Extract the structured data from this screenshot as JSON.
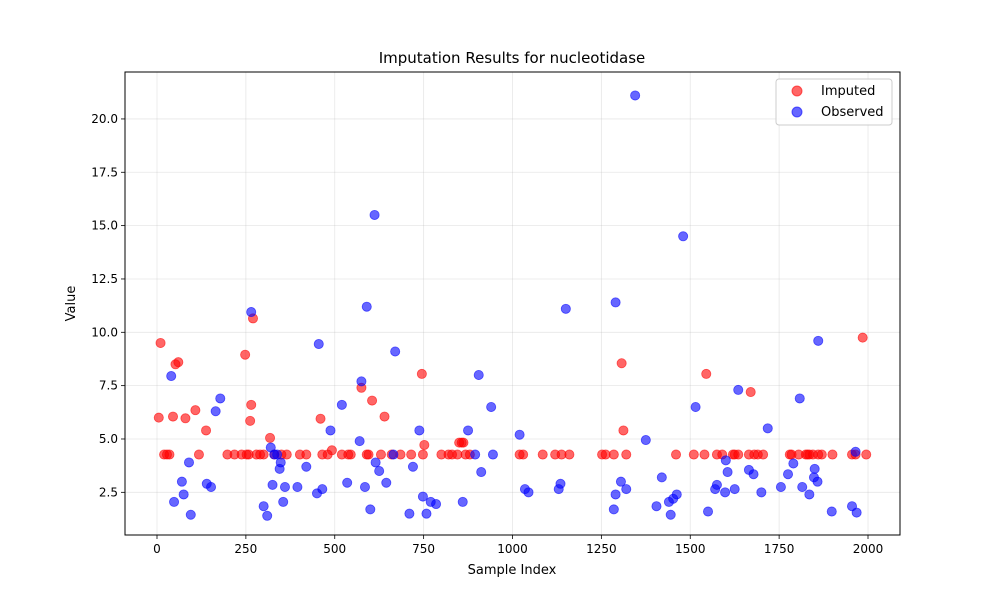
{
  "chart_data": {
    "type": "scatter",
    "title": "Imputation Results for nucleotidase",
    "xlabel": "Sample Index",
    "ylabel": "Value",
    "xlim": [
      -90,
      2090
    ],
    "ylim": [
      0.5,
      22.2
    ],
    "xticks": [
      0,
      250,
      500,
      750,
      1000,
      1250,
      1500,
      1750,
      2000
    ],
    "yticks": [
      2.5,
      5.0,
      7.5,
      10.0,
      12.5,
      15.0,
      17.5,
      20.0
    ],
    "grid": true,
    "legend_position": "top-right",
    "series": [
      {
        "name": "Imputed",
        "color": "#ff0000",
        "points": [
          [
            5,
            6.0
          ],
          [
            10,
            9.5
          ],
          [
            20,
            4.27
          ],
          [
            28,
            4.27
          ],
          [
            35,
            4.27
          ],
          [
            45,
            6.05
          ],
          [
            52,
            8.5
          ],
          [
            60,
            8.6
          ],
          [
            80,
            5.97
          ],
          [
            108,
            6.35
          ],
          [
            118,
            4.27
          ],
          [
            138,
            5.4
          ],
          [
            198,
            4.27
          ],
          [
            218,
            4.27
          ],
          [
            238,
            4.27
          ],
          [
            248,
            8.95
          ],
          [
            252,
            4.27
          ],
          [
            258,
            4.27
          ],
          [
            262,
            5.85
          ],
          [
            265,
            6.6
          ],
          [
            270,
            10.65
          ],
          [
            280,
            4.27
          ],
          [
            290,
            4.27
          ],
          [
            300,
            4.27
          ],
          [
            318,
            5.05
          ],
          [
            330,
            4.27
          ],
          [
            350,
            4.27
          ],
          [
            365,
            4.27
          ],
          [
            402,
            4.27
          ],
          [
            420,
            4.27
          ],
          [
            460,
            5.95
          ],
          [
            465,
            4.27
          ],
          [
            480,
            4.27
          ],
          [
            492,
            4.47
          ],
          [
            520,
            4.27
          ],
          [
            538,
            4.27
          ],
          [
            545,
            4.27
          ],
          [
            575,
            7.4
          ],
          [
            590,
            4.27
          ],
          [
            595,
            4.27
          ],
          [
            605,
            6.8
          ],
          [
            630,
            4.27
          ],
          [
            640,
            6.05
          ],
          [
            660,
            4.27
          ],
          [
            685,
            4.27
          ],
          [
            715,
            4.27
          ],
          [
            745,
            8.05
          ],
          [
            748,
            4.27
          ],
          [
            752,
            4.72
          ],
          [
            800,
            4.27
          ],
          [
            820,
            4.27
          ],
          [
            830,
            4.27
          ],
          [
            845,
            4.27
          ],
          [
            850,
            4.83
          ],
          [
            857,
            4.83
          ],
          [
            862,
            4.83
          ],
          [
            868,
            4.27
          ],
          [
            880,
            4.27
          ],
          [
            1020,
            4.27
          ],
          [
            1030,
            4.27
          ],
          [
            1085,
            4.27
          ],
          [
            1120,
            4.27
          ],
          [
            1138,
            4.27
          ],
          [
            1160,
            4.27
          ],
          [
            1252,
            4.27
          ],
          [
            1262,
            4.27
          ],
          [
            1285,
            4.27
          ],
          [
            1307,
            8.55
          ],
          [
            1312,
            5.4
          ],
          [
            1320,
            4.27
          ],
          [
            1460,
            4.27
          ],
          [
            1510,
            4.27
          ],
          [
            1540,
            4.27
          ],
          [
            1545,
            8.05
          ],
          [
            1575,
            4.27
          ],
          [
            1590,
            4.27
          ],
          [
            1620,
            4.27
          ],
          [
            1625,
            4.27
          ],
          [
            1635,
            4.27
          ],
          [
            1665,
            4.27
          ],
          [
            1670,
            7.2
          ],
          [
            1680,
            4.27
          ],
          [
            1690,
            4.27
          ],
          [
            1705,
            4.27
          ],
          [
            1780,
            4.27
          ],
          [
            1785,
            4.27
          ],
          [
            1805,
            4.27
          ],
          [
            1825,
            4.27
          ],
          [
            1830,
            4.27
          ],
          [
            1835,
            4.27
          ],
          [
            1845,
            4.27
          ],
          [
            1860,
            4.27
          ],
          [
            1870,
            4.27
          ],
          [
            1900,
            4.27
          ],
          [
            1955,
            4.27
          ],
          [
            1965,
            4.27
          ],
          [
            1985,
            9.75
          ],
          [
            1995,
            4.27
          ]
        ]
      },
      {
        "name": "Observed",
        "color": "#0000ff",
        "points": [
          [
            40,
            7.95
          ],
          [
            48,
            2.05
          ],
          [
            70,
            3.0
          ],
          [
            75,
            2.4
          ],
          [
            90,
            3.9
          ],
          [
            95,
            1.45
          ],
          [
            140,
            2.9
          ],
          [
            152,
            2.75
          ],
          [
            165,
            6.3
          ],
          [
            178,
            6.9
          ],
          [
            265,
            10.95
          ],
          [
            300,
            1.85
          ],
          [
            310,
            1.4
          ],
          [
            320,
            4.6
          ],
          [
            325,
            2.85
          ],
          [
            330,
            4.27
          ],
          [
            338,
            4.27
          ],
          [
            345,
            3.6
          ],
          [
            348,
            3.9
          ],
          [
            355,
            2.05
          ],
          [
            360,
            2.75
          ],
          [
            395,
            2.75
          ],
          [
            420,
            3.7
          ],
          [
            450,
            2.45
          ],
          [
            455,
            9.45
          ],
          [
            465,
            2.65
          ],
          [
            488,
            5.4
          ],
          [
            520,
            6.6
          ],
          [
            535,
            2.95
          ],
          [
            570,
            4.9
          ],
          [
            575,
            7.7
          ],
          [
            585,
            2.75
          ],
          [
            590,
            11.2
          ],
          [
            600,
            1.7
          ],
          [
            612,
            15.5
          ],
          [
            615,
            3.9
          ],
          [
            625,
            3.5
          ],
          [
            645,
            2.95
          ],
          [
            665,
            4.27
          ],
          [
            670,
            9.1
          ],
          [
            710,
            1.5
          ],
          [
            720,
            3.7
          ],
          [
            738,
            5.4
          ],
          [
            748,
            2.3
          ],
          [
            758,
            1.5
          ],
          [
            770,
            2.05
          ],
          [
            785,
            1.95
          ],
          [
            860,
            2.05
          ],
          [
            875,
            5.4
          ],
          [
            895,
            4.27
          ],
          [
            905,
            8.0
          ],
          [
            912,
            3.45
          ],
          [
            940,
            6.5
          ],
          [
            945,
            4.27
          ],
          [
            1020,
            5.2
          ],
          [
            1035,
            2.65
          ],
          [
            1045,
            2.5
          ],
          [
            1130,
            2.65
          ],
          [
            1135,
            2.9
          ],
          [
            1150,
            11.1
          ],
          [
            1285,
            1.7
          ],
          [
            1290,
            2.4
          ],
          [
            1290,
            11.4
          ],
          [
            1305,
            3.0
          ],
          [
            1320,
            2.65
          ],
          [
            1345,
            21.1
          ],
          [
            1375,
            4.95
          ],
          [
            1405,
            1.85
          ],
          [
            1420,
            3.2
          ],
          [
            1440,
            2.05
          ],
          [
            1445,
            1.45
          ],
          [
            1452,
            2.2
          ],
          [
            1462,
            2.4
          ],
          [
            1480,
            14.5
          ],
          [
            1515,
            6.5
          ],
          [
            1550,
            1.6
          ],
          [
            1570,
            2.65
          ],
          [
            1575,
            2.85
          ],
          [
            1598,
            2.5
          ],
          [
            1600,
            4.0
          ],
          [
            1605,
            3.45
          ],
          [
            1625,
            2.65
          ],
          [
            1635,
            7.3
          ],
          [
            1665,
            3.55
          ],
          [
            1678,
            3.35
          ],
          [
            1700,
            2.5
          ],
          [
            1718,
            5.5
          ],
          [
            1755,
            2.75
          ],
          [
            1775,
            3.35
          ],
          [
            1790,
            3.85
          ],
          [
            1808,
            6.9
          ],
          [
            1815,
            2.75
          ],
          [
            1835,
            2.4
          ],
          [
            1848,
            3.2
          ],
          [
            1850,
            3.6
          ],
          [
            1858,
            3.0
          ],
          [
            1860,
            9.6
          ],
          [
            1898,
            1.6
          ],
          [
            1955,
            1.85
          ],
          [
            1965,
            4.4
          ],
          [
            1968,
            1.55
          ]
        ]
      }
    ]
  }
}
